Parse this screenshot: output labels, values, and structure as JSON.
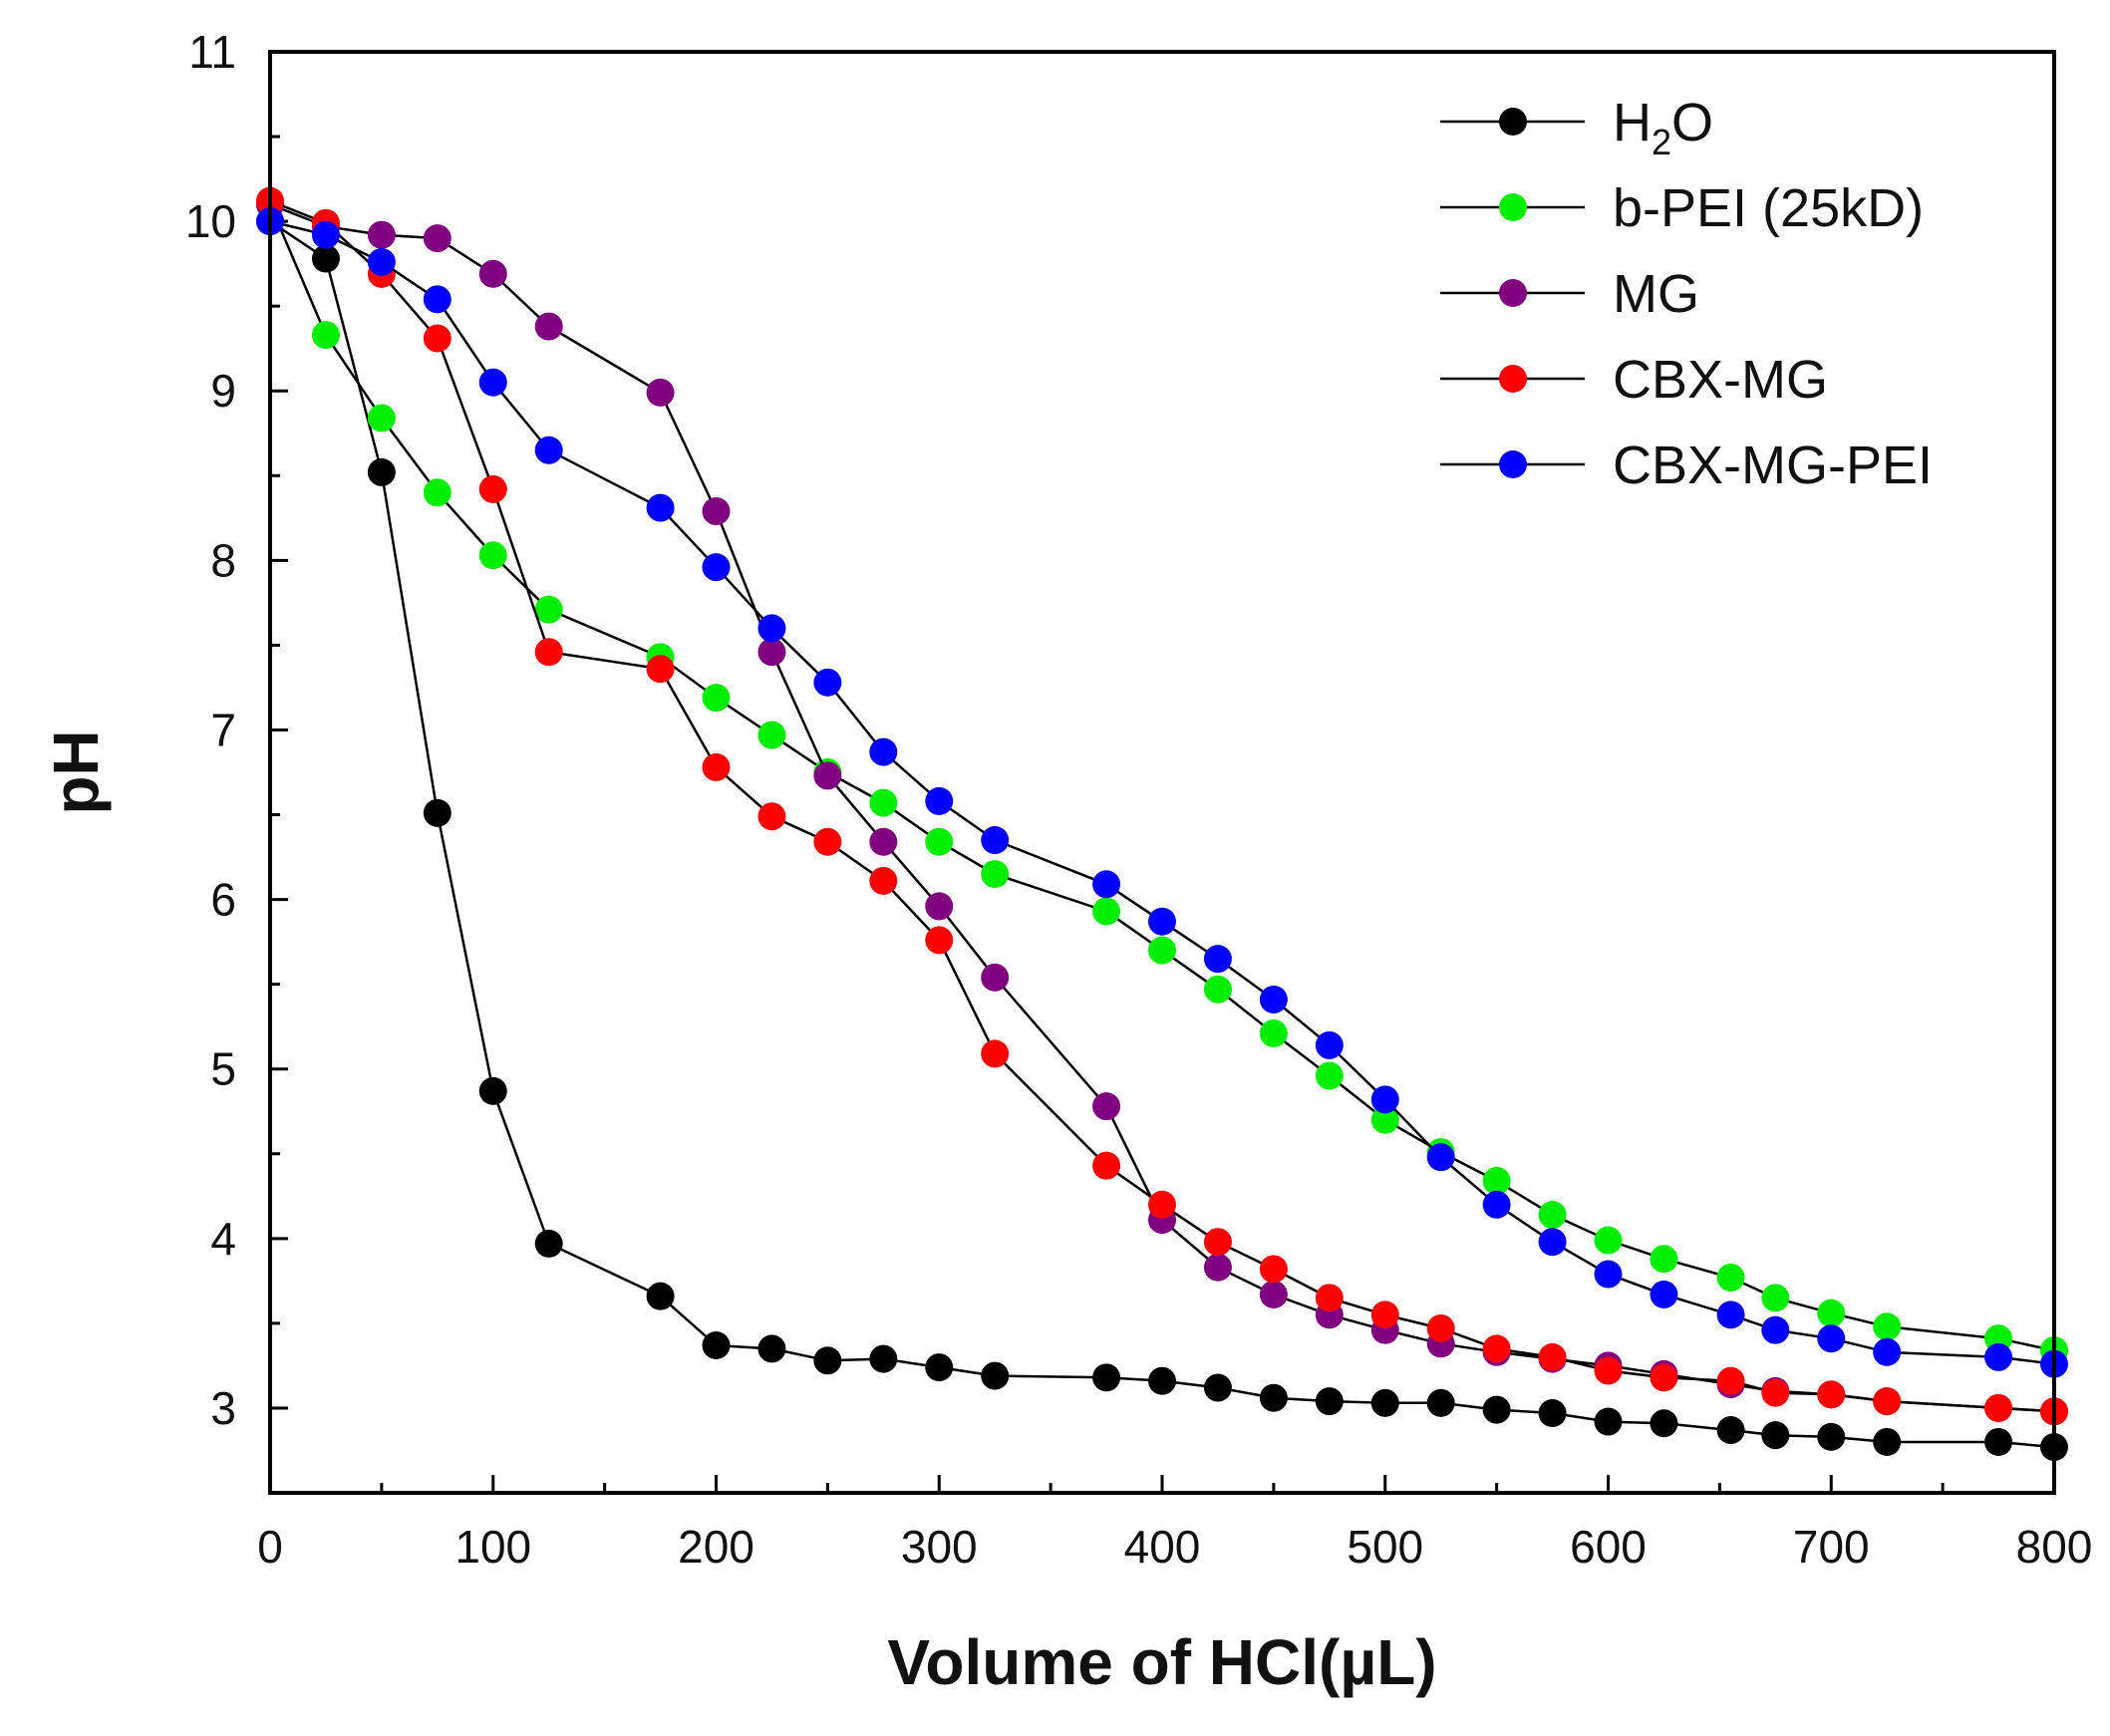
{
  "chart_data": {
    "type": "line",
    "title": "",
    "xlabel": "Volume of HCl(µL)",
    "ylabel": "pH",
    "xlim": [
      0,
      800
    ],
    "ylim": [
      2.5,
      11
    ],
    "xticks": [
      0,
      100,
      200,
      300,
      400,
      500,
      600,
      700,
      800
    ],
    "yticks": [
      3,
      4,
      5,
      6,
      7,
      8,
      9,
      10,
      11
    ],
    "grid": false,
    "legend_position": "top-right",
    "series": [
      {
        "name": "H₂O",
        "legend_main": "H",
        "legend_sub": "2",
        "legend_tail": "O",
        "color": "#000000",
        "x": [
          0,
          25,
          50,
          75,
          100,
          125,
          175,
          200,
          225,
          250,
          275,
          300,
          325,
          375,
          400,
          425,
          450,
          475,
          500,
          525,
          550,
          575,
          600,
          625,
          655,
          675,
          700,
          725,
          775,
          800
        ],
        "y": [
          10.0,
          9.78,
          8.52,
          6.51,
          4.87,
          3.97,
          3.66,
          3.37,
          3.35,
          3.28,
          3.29,
          3.24,
          3.19,
          3.18,
          3.16,
          3.12,
          3.06,
          3.04,
          3.03,
          3.03,
          2.99,
          2.97,
          2.92,
          2.91,
          2.87,
          2.84,
          2.83,
          2.8,
          2.8,
          2.77
        ]
      },
      {
        "name": "b-PEI (25kD)",
        "legend_main": "b-PEI (25kD)",
        "legend_sub": "",
        "legend_tail": "",
        "color": "#00ee00",
        "x": [
          0,
          25,
          50,
          75,
          100,
          125,
          175,
          200,
          225,
          250,
          275,
          300,
          325,
          375,
          400,
          425,
          450,
          475,
          500,
          525,
          550,
          575,
          600,
          625,
          655,
          675,
          700,
          725,
          775,
          800
        ],
        "y": [
          10.1,
          9.33,
          8.84,
          8.4,
          8.03,
          7.71,
          7.43,
          7.19,
          6.97,
          6.75,
          6.57,
          6.34,
          6.15,
          5.93,
          5.7,
          5.47,
          5.21,
          4.96,
          4.7,
          4.51,
          4.34,
          4.14,
          3.99,
          3.88,
          3.77,
          3.65,
          3.56,
          3.48,
          3.41,
          3.34
        ]
      },
      {
        "name": "MG",
        "legend_main": "MG",
        "legend_sub": "",
        "legend_tail": "",
        "color": "#800080",
        "x": [
          0,
          25,
          50,
          75,
          100,
          125,
          175,
          200,
          225,
          250,
          275,
          300,
          325,
          375,
          400,
          425,
          450,
          475,
          500,
          525,
          550,
          575,
          600,
          625,
          655,
          675,
          700,
          725,
          775,
          800
        ],
        "y": [
          10.1,
          9.97,
          9.92,
          9.9,
          9.69,
          9.38,
          8.99,
          8.29,
          7.46,
          6.73,
          6.34,
          5.96,
          5.54,
          4.78,
          4.11,
          3.83,
          3.67,
          3.55,
          3.46,
          3.38,
          3.33,
          3.29,
          3.25,
          3.2,
          3.14,
          3.1,
          3.08,
          3.04,
          3.0,
          2.98
        ]
      },
      {
        "name": "CBX-MG",
        "legend_main": "CBX-MG",
        "legend_sub": "",
        "legend_tail": "",
        "color": "#ff0000",
        "x": [
          0,
          25,
          50,
          75,
          100,
          125,
          175,
          200,
          225,
          250,
          275,
          300,
          325,
          375,
          400,
          425,
          450,
          475,
          500,
          525,
          550,
          575,
          600,
          625,
          655,
          675,
          700,
          725,
          775,
          800
        ],
        "y": [
          10.12,
          9.99,
          9.69,
          9.31,
          8.42,
          7.46,
          7.36,
          6.78,
          6.49,
          6.34,
          6.11,
          5.76,
          5.09,
          4.43,
          4.2,
          3.98,
          3.82,
          3.65,
          3.55,
          3.47,
          3.35,
          3.3,
          3.22,
          3.18,
          3.16,
          3.09,
          3.08,
          3.04,
          3.0,
          2.98
        ]
      },
      {
        "name": "CBX-MG-PEI",
        "legend_main": "CBX-MG-PEI",
        "legend_sub": "",
        "legend_tail": "",
        "color": "#0000ff",
        "x": [
          0,
          25,
          50,
          75,
          100,
          125,
          175,
          200,
          225,
          250,
          275,
          300,
          325,
          375,
          400,
          425,
          450,
          475,
          500,
          525,
          550,
          575,
          600,
          625,
          655,
          675,
          700,
          725,
          775,
          800
        ],
        "y": [
          10.0,
          9.92,
          9.76,
          9.54,
          9.05,
          8.65,
          8.31,
          7.96,
          7.6,
          7.28,
          6.87,
          6.58,
          6.35,
          6.09,
          5.87,
          5.65,
          5.41,
          5.14,
          4.82,
          4.48,
          4.2,
          3.98,
          3.79,
          3.67,
          3.55,
          3.46,
          3.41,
          3.33,
          3.3,
          3.26
        ]
      }
    ]
  }
}
